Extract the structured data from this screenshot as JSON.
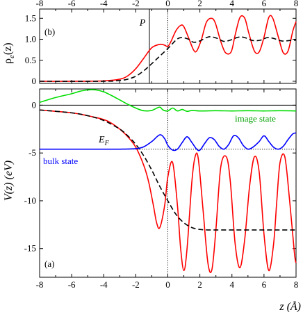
{
  "chart_data": [
    {
      "id": "top",
      "type": "line",
      "panel_label": "(b)",
      "ylabel_main": "ρ",
      "ylabel_sub": "e",
      "ylabel_tail": "(z)",
      "xlim": [
        -8,
        8
      ],
      "ylim": [
        -0.05,
        1.72
      ],
      "xticks": [
        -8,
        -6,
        -4,
        -2,
        0,
        2,
        4,
        6,
        8
      ],
      "xtick_labels": [
        "-8",
        "-6",
        "-4",
        "-2",
        "0",
        "2",
        "4",
        "6",
        "8"
      ],
      "yticks": [
        0,
        0.5,
        1.0,
        1.5
      ],
      "ytick_labels": [
        "0",
        "0.5",
        "1.0",
        "1.5"
      ],
      "annotations": [
        {
          "text": "P",
          "x": -1.25
        }
      ],
      "vlines": [
        {
          "x": -1.15,
          "style": "solid"
        },
        {
          "x": 0,
          "style": "dotted"
        }
      ],
      "series": [
        {
          "color": "#ff0000",
          "style": "solid",
          "x": [
            -8,
            -6,
            -4,
            -3,
            -2.5,
            -2,
            -1.5,
            -1,
            -0.5,
            -0.2,
            0,
            0.2,
            0.5,
            0.8,
            1.0,
            1.3,
            1.6,
            1.8,
            2.1,
            2.4,
            2.7,
            2.95,
            3.3,
            3.6,
            3.95,
            4.2,
            4.5,
            4.8,
            5.05,
            5.4,
            5.7,
            6.0,
            6.3,
            6.55,
            6.9,
            7.2,
            7.5,
            7.8,
            8.0
          ],
          "y": [
            0,
            0,
            0.01,
            0.05,
            0.13,
            0.3,
            0.55,
            0.8,
            0.88,
            0.86,
            0.83,
            0.95,
            1.2,
            1.33,
            1.3,
            1.03,
            0.75,
            0.72,
            1.0,
            1.4,
            1.5,
            1.4,
            0.95,
            0.68,
            0.7,
            1.1,
            1.52,
            1.5,
            1.15,
            0.72,
            0.7,
            1.05,
            1.52,
            1.5,
            1.05,
            0.68,
            0.72,
            1.2,
            1.42
          ]
        },
        {
          "color": "#000000",
          "style": "dashed",
          "x": [
            -8,
            -4,
            -3,
            -2.5,
            -2,
            -1.5,
            -1,
            -0.5,
            0,
            0.3,
            0.6,
            0.9,
            1.3,
            1.6,
            2.0,
            2.4,
            2.7,
            3.1,
            3.5,
            3.9,
            4.4,
            4.8,
            5.3,
            5.8,
            6.2,
            6.6,
            7.1,
            7.6,
            8.0
          ],
          "y": [
            0,
            0,
            0.02,
            0.05,
            0.12,
            0.25,
            0.42,
            0.6,
            0.78,
            0.9,
            1.01,
            1.04,
            1.0,
            0.93,
            0.96,
            1.04,
            1.06,
            1.02,
            0.95,
            0.98,
            1.05,
            1.04,
            0.97,
            0.98,
            1.04,
            1.02,
            0.96,
            0.97,
            0.98
          ]
        }
      ]
    },
    {
      "id": "bottom",
      "type": "line",
      "panel_label": "(a)",
      "ylabel": "V(z)  (eV)",
      "xlabel": "z (Å)",
      "xlim": [
        -8,
        8
      ],
      "ylim": [
        -18,
        1.7
      ],
      "xticks": [
        -8,
        -6,
        -4,
        -2,
        0,
        2,
        4,
        6,
        8
      ],
      "xtick_labels": [
        "-8",
        "-6",
        "-4",
        "-2",
        "0",
        "2",
        "4",
        "6",
        "8"
      ],
      "yticks": [
        0,
        -5,
        -10,
        -15
      ],
      "ytick_labels": [
        "0",
        "-5",
        "-10",
        "-15"
      ],
      "annotations": [
        {
          "text": "image state",
          "color": "#00a000"
        },
        {
          "text": "bulk state",
          "color": "#0000ff"
        },
        {
          "text": "E",
          "sub": "F"
        }
      ],
      "hlines": [
        {
          "y": 0,
          "style": "solid"
        },
        {
          "y": -4.6,
          "style": "dotted"
        }
      ],
      "vlines": [
        {
          "x": 0,
          "style": "dotted"
        }
      ],
      "series": [
        {
          "color": "#ff0000",
          "style": "solid",
          "x": [
            -8,
            -6,
            -5,
            -4,
            -3.5,
            -3,
            -2.5,
            -2,
            -1.5,
            -1.2,
            -0.9,
            -0.7,
            -0.5,
            -0.2,
            0,
            0.3,
            0.6,
            0.8,
            1.0,
            1.2,
            1.5,
            1.7,
            1.9,
            2.2,
            2.5,
            2.75,
            3.0,
            3.3,
            3.65,
            3.9,
            4.2,
            4.5,
            4.8,
            5.1,
            5.4,
            5.7,
            6.0,
            6.3,
            6.6,
            6.8,
            7.0,
            7.3,
            7.6,
            7.9,
            8.0
          ],
          "y": [
            -0.5,
            -0.8,
            -1.1,
            -1.5,
            -1.9,
            -2.5,
            -3.3,
            -4.4,
            -6.3,
            -8.0,
            -10.5,
            -12.3,
            -12.8,
            -10.5,
            -7.5,
            -6.0,
            -10.5,
            -15.0,
            -17.3,
            -15.0,
            -8.0,
            -5.4,
            -5.6,
            -11.0,
            -16.5,
            -17.2,
            -13.0,
            -6.5,
            -5.4,
            -8.0,
            -14.5,
            -17.0,
            -14.0,
            -8.5,
            -5.4,
            -7.0,
            -13.5,
            -17.3,
            -14.5,
            -10.0,
            -6.0,
            -5.4,
            -10.0,
            -15.5,
            -16.5
          ]
        },
        {
          "color": "#000000",
          "style": "dashed",
          "x": [
            -8,
            -6,
            -5,
            -4,
            -3,
            -2.5,
            -2,
            -1.5,
            -1,
            -0.5,
            0,
            0.5,
            1.0,
            1.5,
            2.0,
            2.5,
            3.0,
            4.0,
            5.0,
            6.0,
            7.0,
            8.0
          ],
          "y": [
            -0.5,
            -0.8,
            -1.1,
            -1.6,
            -2.5,
            -3.2,
            -4.1,
            -5.3,
            -6.8,
            -8.5,
            -10.0,
            -11.4,
            -12.3,
            -12.8,
            -13.0,
            -13.05,
            -13.05,
            -13.05,
            -13.05,
            -13.05,
            -13.05,
            -13.05
          ]
        },
        {
          "color": "#00dd00",
          "style": "solid",
          "x": [
            -8,
            -7,
            -6,
            -5.5,
            -5,
            -4.5,
            -4,
            -3.5,
            -3,
            -2.5,
            -2,
            -1.6,
            -1.3,
            -1.0,
            -0.8,
            -0.5,
            -0.3,
            0,
            0.3,
            0.6,
            0.9,
            1.2,
            1.5,
            2,
            3,
            4,
            5,
            6,
            7,
            8
          ],
          "y": [
            0.3,
            0.8,
            1.2,
            1.45,
            1.6,
            1.6,
            1.4,
            1.0,
            0.55,
            0.1,
            -0.3,
            -0.55,
            -0.6,
            -0.55,
            -0.4,
            -0.2,
            -0.5,
            -0.6,
            -0.3,
            -0.6,
            -0.45,
            -0.65,
            -0.55,
            -0.6,
            -0.58,
            -0.6,
            -0.58,
            -0.6,
            -0.58,
            -0.6
          ]
        },
        {
          "color": "#0000ff",
          "style": "solid",
          "x": [
            -8,
            -4,
            -3,
            -2,
            -1.5,
            -1.0,
            -0.5,
            -0.2,
            0,
            0.3,
            0.6,
            0.9,
            1.2,
            1.5,
            1.8,
            2.0,
            2.3,
            2.6,
            2.9,
            3.2,
            3.5,
            3.8,
            4.1,
            4.4,
            4.7,
            5.0,
            5.3,
            5.7,
            6.0,
            6.3,
            6.6,
            6.9,
            7.2,
            7.5,
            7.8,
            8.0
          ],
          "y": [
            -4.6,
            -4.6,
            -4.6,
            -4.55,
            -4.35,
            -3.8,
            -3.1,
            -3.5,
            -4.2,
            -4.7,
            -4.6,
            -3.9,
            -3.3,
            -3.9,
            -4.6,
            -4.7,
            -4.0,
            -3.4,
            -3.6,
            -4.3,
            -4.6,
            -4.1,
            -3.2,
            -3.4,
            -4.2,
            -4.6,
            -4.4,
            -3.8,
            -3.2,
            -3.8,
            -4.4,
            -4.6,
            -4.3,
            -3.6,
            -3.0,
            -2.9
          ]
        }
      ]
    }
  ]
}
